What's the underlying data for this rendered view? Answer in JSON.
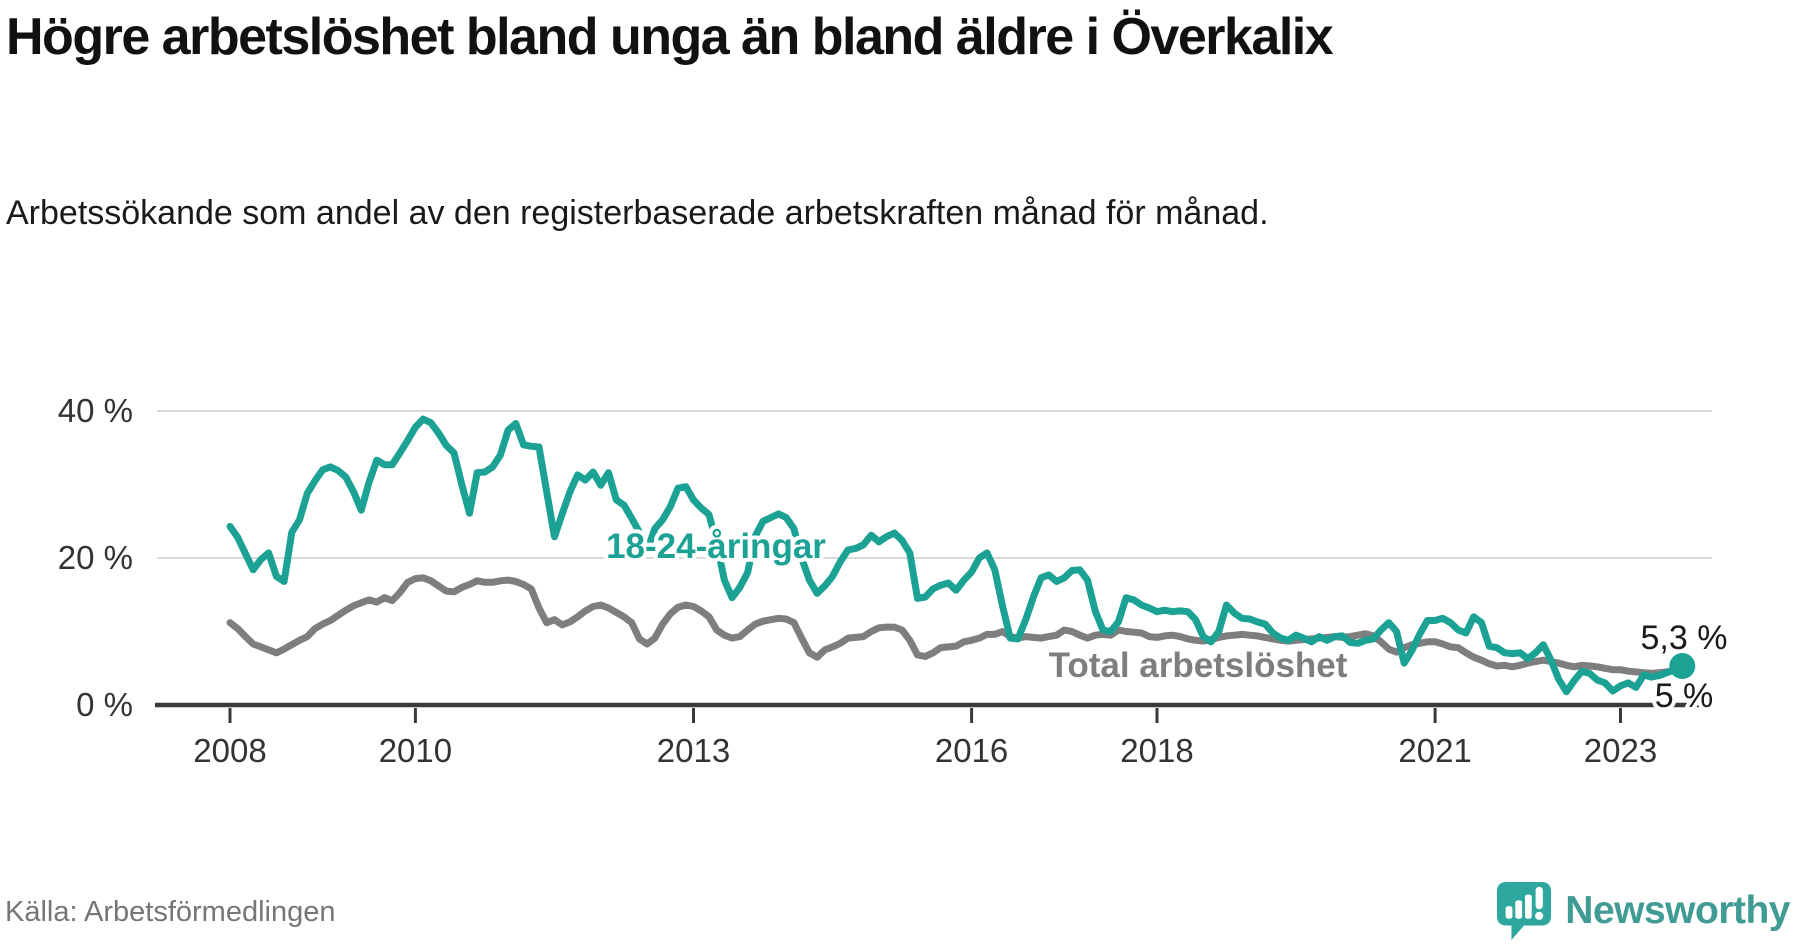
{
  "header": {
    "title": "Högre arbetslöshet bland unga än bland äldre i Överkalix",
    "subtitle": "Arbetssökande som andel av den registerbaserade arbetskraften månad för månad."
  },
  "source": {
    "label": "Källa: Arbetsförmedlingen"
  },
  "branding": {
    "name": "Newsworthy",
    "logo_icon": "speech-bubble-bar-chart-icon",
    "wordmark_color": "#3F9B94",
    "bubble_color": "#2EA79F"
  },
  "chart_data": {
    "type": "line",
    "title": "Högre arbetslöshet bland unga än bland äldre i Överkalix",
    "subtitle": "Arbetssökande som andel av den registerbaserade arbetskraften månad för månad.",
    "unit": "%",
    "x_start": "2008-01",
    "frequency": "monthly",
    "grid": "horizontal",
    "legend_position": "inline-labels",
    "x_ticks": [
      {
        "label": "2008",
        "month_index": 0
      },
      {
        "label": "2010",
        "month_index": 24
      },
      {
        "label": "2013",
        "month_index": 60
      },
      {
        "label": "2016",
        "month_index": 96
      },
      {
        "label": "2018",
        "month_index": 120
      },
      {
        "label": "2021",
        "month_index": 156
      },
      {
        "label": "2023",
        "month_index": 180
      }
    ],
    "y_ticks": [
      {
        "label": "0 %",
        "value": 0
      },
      {
        "label": "20 %",
        "value": 20
      },
      {
        "label": "40 %",
        "value": 40
      }
    ],
    "ylim": [
      0,
      44
    ],
    "axis_color": "#3a3a3a",
    "gridline_color": "#dadada",
    "series": [
      {
        "name": "Total arbetslöshet",
        "color": "#7E7E7E",
        "end_label": "5 %",
        "end_marker": false,
        "values": [
          11.2,
          10.4,
          9.3,
          8.3,
          7.9,
          7.5,
          7.1,
          7.6,
          8.2,
          8.8,
          9.3,
          10.4,
          11.0,
          11.5,
          12.2,
          12.9,
          13.5,
          13.9,
          14.3,
          14.0,
          14.6,
          14.2,
          15.3,
          16.7,
          17.2,
          17.3,
          16.9,
          16.2,
          15.5,
          15.4,
          16.0,
          16.4,
          16.9,
          16.7,
          16.7,
          16.9,
          17.0,
          16.8,
          16.4,
          15.8,
          13.2,
          11.2,
          11.6,
          10.9,
          11.3,
          12.0,
          12.8,
          13.4,
          13.6,
          13.2,
          12.6,
          12.0,
          11.2,
          9.0,
          8.3,
          9.1,
          11.0,
          12.4,
          13.3,
          13.6,
          13.4,
          12.8,
          12.0,
          10.2,
          9.5,
          9.1,
          9.3,
          10.2,
          11.0,
          11.4,
          11.6,
          11.8,
          11.7,
          11.2,
          9.1,
          7.1,
          6.5,
          7.5,
          7.9,
          8.4,
          9.1,
          9.2,
          9.3,
          10.0,
          10.5,
          10.6,
          10.6,
          10.2,
          8.8,
          6.8,
          6.6,
          7.1,
          7.8,
          7.9,
          8.0,
          8.6,
          8.8,
          9.1,
          9.6,
          9.6,
          10.0,
          9.3,
          9.1,
          9.3,
          9.2,
          9.1,
          9.3,
          9.5,
          10.2,
          10.0,
          9.5,
          9.1,
          9.5,
          9.6,
          9.5,
          10.2,
          10.0,
          9.9,
          9.8,
          9.3,
          9.2,
          9.4,
          9.5,
          9.3,
          9.0,
          8.8,
          8.7,
          8.9,
          9.2,
          9.4,
          9.5,
          9.6,
          9.5,
          9.4,
          9.2,
          9.0,
          8.8,
          8.7,
          8.8,
          8.9,
          9.0,
          9.1,
          9.2,
          9.3,
          9.2,
          9.3,
          9.5,
          9.7,
          9.4,
          8.6,
          7.6,
          7.2,
          7.8,
          8.2,
          8.4,
          8.6,
          8.6,
          8.3,
          7.9,
          7.8,
          7.1,
          6.5,
          6.1,
          5.6,
          5.3,
          5.4,
          5.2,
          5.4,
          5.7,
          5.9,
          6.1,
          5.9,
          5.7,
          5.4,
          5.2,
          5.4,
          5.3,
          5.2,
          5.0,
          4.8,
          4.8,
          4.6,
          4.5,
          4.4,
          4.3,
          4.4,
          4.5,
          4.7,
          5.0
        ]
      },
      {
        "name": "18-24-åringar",
        "color": "#1CA294",
        "end_label": "5,3 %",
        "end_marker": true,
        "values": [
          24.3,
          22.8,
          20.6,
          18.4,
          19.8,
          20.7,
          17.5,
          16.8,
          23.5,
          25.2,
          28.8,
          30.5,
          32.0,
          32.4,
          31.9,
          31.0,
          29.0,
          26.5,
          30.3,
          33.3,
          32.7,
          32.7,
          34.3,
          36.0,
          37.8,
          38.9,
          38.4,
          37.0,
          35.3,
          34.3,
          30.0,
          26.1,
          31.6,
          31.7,
          32.4,
          34.0,
          37.4,
          38.3,
          35.4,
          35.2,
          35.1,
          29.0,
          22.9,
          26.0,
          29.0,
          31.3,
          30.6,
          31.7,
          29.9,
          31.6,
          27.9,
          27.2,
          25.4,
          23.5,
          21.0,
          24.0,
          25.2,
          27.0,
          29.5,
          29.7,
          27.9,
          26.8,
          25.9,
          22.0,
          17.0,
          14.6,
          16.0,
          18.0,
          23.0,
          25.0,
          25.5,
          26.0,
          25.5,
          24.0,
          20.0,
          17.0,
          15.2,
          16.2,
          17.5,
          19.5,
          21.1,
          21.3,
          21.8,
          23.1,
          22.2,
          22.9,
          23.4,
          22.4,
          20.7,
          14.5,
          14.7,
          15.8,
          16.3,
          16.6,
          15.6,
          17.0,
          18.1,
          20.0,
          20.7,
          18.4,
          13.5,
          9.1,
          9.0,
          11.6,
          14.7,
          17.3,
          17.7,
          16.8,
          17.3,
          18.3,
          18.4,
          17.0,
          12.8,
          10.2,
          10.0,
          11.3,
          14.6,
          14.3,
          13.6,
          13.2,
          12.7,
          12.9,
          12.7,
          12.8,
          12.7,
          11.6,
          9.3,
          8.6,
          10.0,
          13.6,
          12.5,
          11.8,
          11.7,
          11.3,
          11.0,
          9.8,
          9.1,
          8.8,
          9.5,
          9.1,
          8.6,
          9.3,
          8.8,
          9.3,
          9.4,
          8.5,
          8.4,
          8.8,
          9.0,
          10.2,
          11.2,
          10.0,
          5.7,
          7.4,
          9.6,
          11.5,
          11.5,
          11.8,
          11.2,
          10.2,
          9.8,
          12.0,
          11.2,
          8.0,
          7.8,
          7.1,
          7.0,
          7.1,
          6.3,
          7.1,
          8.2,
          6.1,
          3.5,
          1.8,
          3.3,
          4.6,
          4.3,
          3.4,
          3.0,
          1.9,
          2.6,
          3.0,
          2.4,
          4.1,
          3.8,
          4.0,
          4.4,
          4.8,
          5.3
        ]
      }
    ]
  }
}
